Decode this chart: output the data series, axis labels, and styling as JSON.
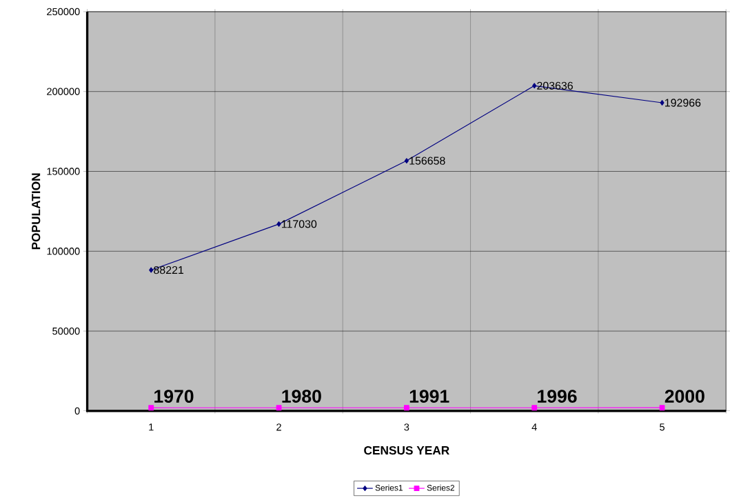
{
  "chart_data": {
    "type": "line",
    "xlabel": "CENSUS YEAR",
    "ylabel": "POPULATION",
    "categories": [
      "1",
      "2",
      "3",
      "4",
      "5"
    ],
    "series": [
      {
        "name": "Series1",
        "color": "#000080",
        "marker": "diamond",
        "values": [
          88221,
          117030,
          156658,
          203636,
          192966
        ]
      },
      {
        "name": "Series2",
        "color": "#ff00ff",
        "marker": "square",
        "values": [
          1970,
          1980,
          1991,
          1996,
          2000
        ]
      }
    ],
    "ylim": [
      0,
      250000
    ],
    "yticks": [
      0,
      50000,
      100000,
      150000,
      200000,
      250000
    ],
    "grid": true,
    "legend": "bottom",
    "data_labels": true
  }
}
